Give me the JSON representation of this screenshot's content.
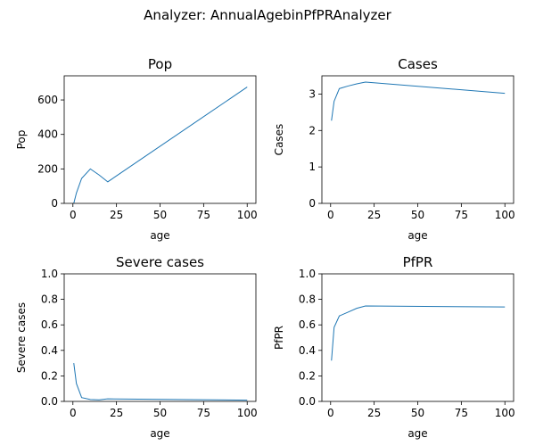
{
  "figure": {
    "title": "Analyzer: AnnualAgebinPfPRAnalyzer"
  },
  "colors": {
    "series": "#1f77b4",
    "axes": "#000000",
    "background": "#ffffff"
  },
  "chart_data": [
    {
      "type": "line",
      "title": "Pop",
      "xlabel": "age",
      "ylabel": "Pop",
      "xlim": [
        -5,
        105
      ],
      "ylim": [
        0,
        740
      ],
      "xticks": [
        0,
        25,
        50,
        75,
        100
      ],
      "yticks": [
        0,
        200,
        400,
        600
      ],
      "x": [
        0.5,
        2,
        5,
        10,
        15,
        20,
        100
      ],
      "y": [
        0,
        60,
        145,
        200,
        165,
        125,
        675
      ]
    },
    {
      "type": "line",
      "title": "Cases",
      "xlabel": "age",
      "ylabel": "Cases",
      "xlim": [
        -5,
        105
      ],
      "ylim": [
        0,
        3.5
      ],
      "xticks": [
        0,
        25,
        50,
        75,
        100
      ],
      "yticks": [
        0,
        1,
        2,
        3
      ],
      "x": [
        0.5,
        2,
        5,
        10,
        15,
        20,
        100
      ],
      "y": [
        2.27,
        2.8,
        3.15,
        3.22,
        3.28,
        3.33,
        3.02
      ]
    },
    {
      "type": "line",
      "title": "Severe cases",
      "xlabel": "age",
      "ylabel": "Severe cases",
      "xlim": [
        -5,
        105
      ],
      "ylim": [
        0,
        1.0
      ],
      "xticks": [
        0,
        25,
        50,
        75,
        100
      ],
      "yticks": [
        0.0,
        0.2,
        0.4,
        0.6,
        0.8,
        1.0
      ],
      "x": [
        0.5,
        2,
        5,
        10,
        15,
        20,
        100
      ],
      "y": [
        0.3,
        0.14,
        0.03,
        0.015,
        0.012,
        0.02,
        0.01
      ]
    },
    {
      "type": "line",
      "title": "PfPR",
      "xlabel": "age",
      "ylabel": "PfPR",
      "xlim": [
        -5,
        105
      ],
      "ylim": [
        0,
        1.0
      ],
      "xticks": [
        0,
        25,
        50,
        75,
        100
      ],
      "yticks": [
        0.0,
        0.2,
        0.4,
        0.6,
        0.8,
        1.0
      ],
      "x": [
        0.5,
        2,
        5,
        10,
        15,
        20,
        100
      ],
      "y": [
        0.32,
        0.58,
        0.67,
        0.7,
        0.73,
        0.748,
        0.74
      ]
    }
  ]
}
